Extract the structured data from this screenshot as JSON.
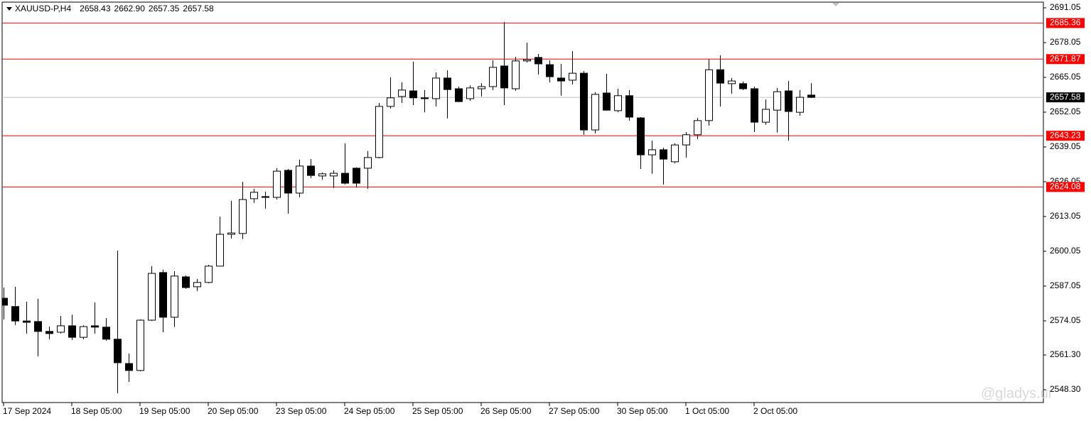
{
  "chart_data": {
    "type": "candlestick",
    "header": {
      "symbol": "XAUUSD-P,H4",
      "prices": [
        2658.43,
        {
          "value": 2662.9,
          "label": "2662.90"
        },
        2657.35,
        2657.58
      ]
    },
    "categories": [
      "17 Sep 2024",
      null,
      null,
      null,
      null,
      null,
      "18 Sep 05:00",
      null,
      null,
      null,
      null,
      null,
      "19 Sep 05:00",
      null,
      null,
      null,
      null,
      null,
      "20 Sep 05:00",
      null,
      null,
      null,
      null,
      null,
      "23 Sep 05:00",
      null,
      null,
      null,
      null,
      null,
      "24 Sep 05:00",
      null,
      null,
      null,
      null,
      null,
      "25 Sep 05:00",
      null,
      null,
      null,
      null,
      null,
      "26 Sep 05:00",
      null,
      null,
      null,
      null,
      null,
      "27 Sep 05:00",
      null,
      null,
      null,
      null,
      null,
      "30 Sep 05:00",
      null,
      null,
      null,
      null,
      null,
      "1 Oct 05:00",
      null,
      null,
      null,
      null,
      null,
      "2 Oct 05:00",
      null,
      null,
      null,
      null,
      null
    ],
    "open": [
      2582.5,
      2579.4,
      2574.0,
      2573.8,
      2570.1,
      2569.8,
      2572.2,
      2567.9,
      2572.2,
      2571.7,
      2567.2,
      2558.1,
      2555.5,
      2574.3,
      2592.1,
      2575.4,
      2590.5,
      2586.8,
      2588.4,
      2594.5,
      2606.4,
      2606.7,
      2619.7,
      2620.5,
      2620.2,
      2630.3,
      2621.8,
      2631.9,
      2628.2,
      2628.2,
      2629.2,
      2631.1,
      2631.1,
      2635.1,
      2654.2,
      2657.9,
      2660.0,
      2657.4,
      2657.1,
      2664.8,
      2660.8,
      2657.1,
      2660.8,
      2661.6,
      2669.3,
      2660.8,
      2671.2,
      2672.5,
      2669.8,
      2664.8,
      2664.0,
      2666.6,
      2645.4,
      2659.2,
      2652.6,
      2658.2,
      2649.9,
      2636.1,
      2638.0,
      2633.5,
      2639.8,
      2643.6,
      2648.9,
      2667.9,
      2662.7,
      2662.7,
      2660.8,
      2648.3,
      2652.8,
      2660.0,
      2652.0,
      2658.43
    ],
    "high": [
      2586.5,
      2586.8,
      2581.2,
      2582.3,
      2571.9,
      2575.9,
      2576.4,
      2572.4,
      2580.9,
      2575.1,
      2600.3,
      2561.8,
      2574.6,
      2594.5,
      2593.2,
      2592.6,
      2591.0,
      2589.7,
      2595.0,
      2613.0,
      2618.9,
      2626.0,
      2623.4,
      2622.3,
      2631.1,
      2630.8,
      2634.3,
      2634.5,
      2629.5,
      2630.3,
      2640.4,
      2631.4,
      2637.5,
      2655.5,
      2665.1,
      2663.2,
      2670.9,
      2660.3,
      2666.9,
      2667.7,
      2661.6,
      2662.1,
      2662.9,
      2671.4,
      2685.7,
      2672.7,
      2678.0,
      2673.8,
      2671.4,
      2670.1,
      2674.9,
      2667.4,
      2659.5,
      2666.4,
      2660.8,
      2660.3,
      2650.2,
      2641.4,
      2638.8,
      2640.4,
      2644.6,
      2649.9,
      2671.9,
      2673.3,
      2664.8,
      2663.5,
      2661.6,
      2656.8,
      2661.1,
      2663.7,
      2660.3,
      2662.9
    ],
    "low": [
      2574.6,
      2572.5,
      2569.3,
      2560.8,
      2567.2,
      2569.3,
      2566.9,
      2567.2,
      2569.3,
      2566.6,
      2547.0,
      2551.2,
      2555.2,
      2574.0,
      2569.8,
      2571.7,
      2586.0,
      2585.2,
      2588.1,
      2594.4,
      2604.8,
      2604.6,
      2618.1,
      2616.0,
      2619.4,
      2614.1,
      2620.2,
      2627.4,
      2626.8,
      2623.7,
      2625.0,
      2623.9,
      2623.4,
      2634.8,
      2653.4,
      2655.5,
      2654.7,
      2652.0,
      2654.2,
      2649.7,
      2655.8,
      2656.3,
      2657.9,
      2660.3,
      2654.7,
      2660.0,
      2670.6,
      2666.1,
      2663.2,
      2658.2,
      2662.4,
      2643.6,
      2644.1,
      2652.6,
      2652.0,
      2648.9,
      2630.8,
      2629.0,
      2625.0,
      2632.9,
      2635.1,
      2642.0,
      2647.0,
      2654.2,
      2658.9,
      2660.3,
      2644.6,
      2647.3,
      2644.4,
      2641.4,
      2650.7,
      2657.35
    ],
    "close": [
      2579.9,
      2574.0,
      2573.5,
      2570.1,
      2569.3,
      2572.2,
      2567.9,
      2571.9,
      2571.7,
      2567.2,
      2558.4,
      2555.5,
      2574.3,
      2591.8,
      2575.4,
      2590.8,
      2586.5,
      2588.4,
      2594.5,
      2606.4,
      2606.9,
      2619.4,
      2622.1,
      2620.2,
      2630.0,
      2621.8,
      2631.9,
      2628.4,
      2629.0,
      2629.2,
      2625.5,
      2625.5,
      2635.1,
      2654.2,
      2657.4,
      2660.3,
      2657.4,
      2657.1,
      2664.8,
      2660.5,
      2656.0,
      2661.1,
      2661.6,
      2668.8,
      2661.1,
      2671.2,
      2671.7,
      2670.1,
      2665.3,
      2663.7,
      2666.6,
      2645.4,
      2658.7,
      2652.8,
      2658.2,
      2650.2,
      2636.1,
      2638.0,
      2634.5,
      2639.8,
      2643.6,
      2648.9,
      2667.9,
      2662.9,
      2663.7,
      2660.8,
      2648.3,
      2653.1,
      2659.7,
      2652.3,
      2657.6,
      2657.58
    ],
    "up_color": "#ffffff",
    "down_color": "#000000",
    "levels": [
      2685.36,
      2671.87,
      2643.23,
      2624.08
    ],
    "level_color": "#ff0000",
    "price_line_color": "#c0c0c0",
    "ylim": [
      2543.52,
      2693.17
    ],
    "yticks": [
      2691.05,
      2678.05,
      2665.05,
      2652.05,
      2639.05,
      2626.05,
      2613.05,
      2600.05,
      2587.05,
      2574.05,
      {
        "value": 2561.3,
        "label": "2561.30"
      },
      {
        "value": 2548.3,
        "label": "2548.30"
      }
    ],
    "watermark": "@gladys.ur"
  }
}
